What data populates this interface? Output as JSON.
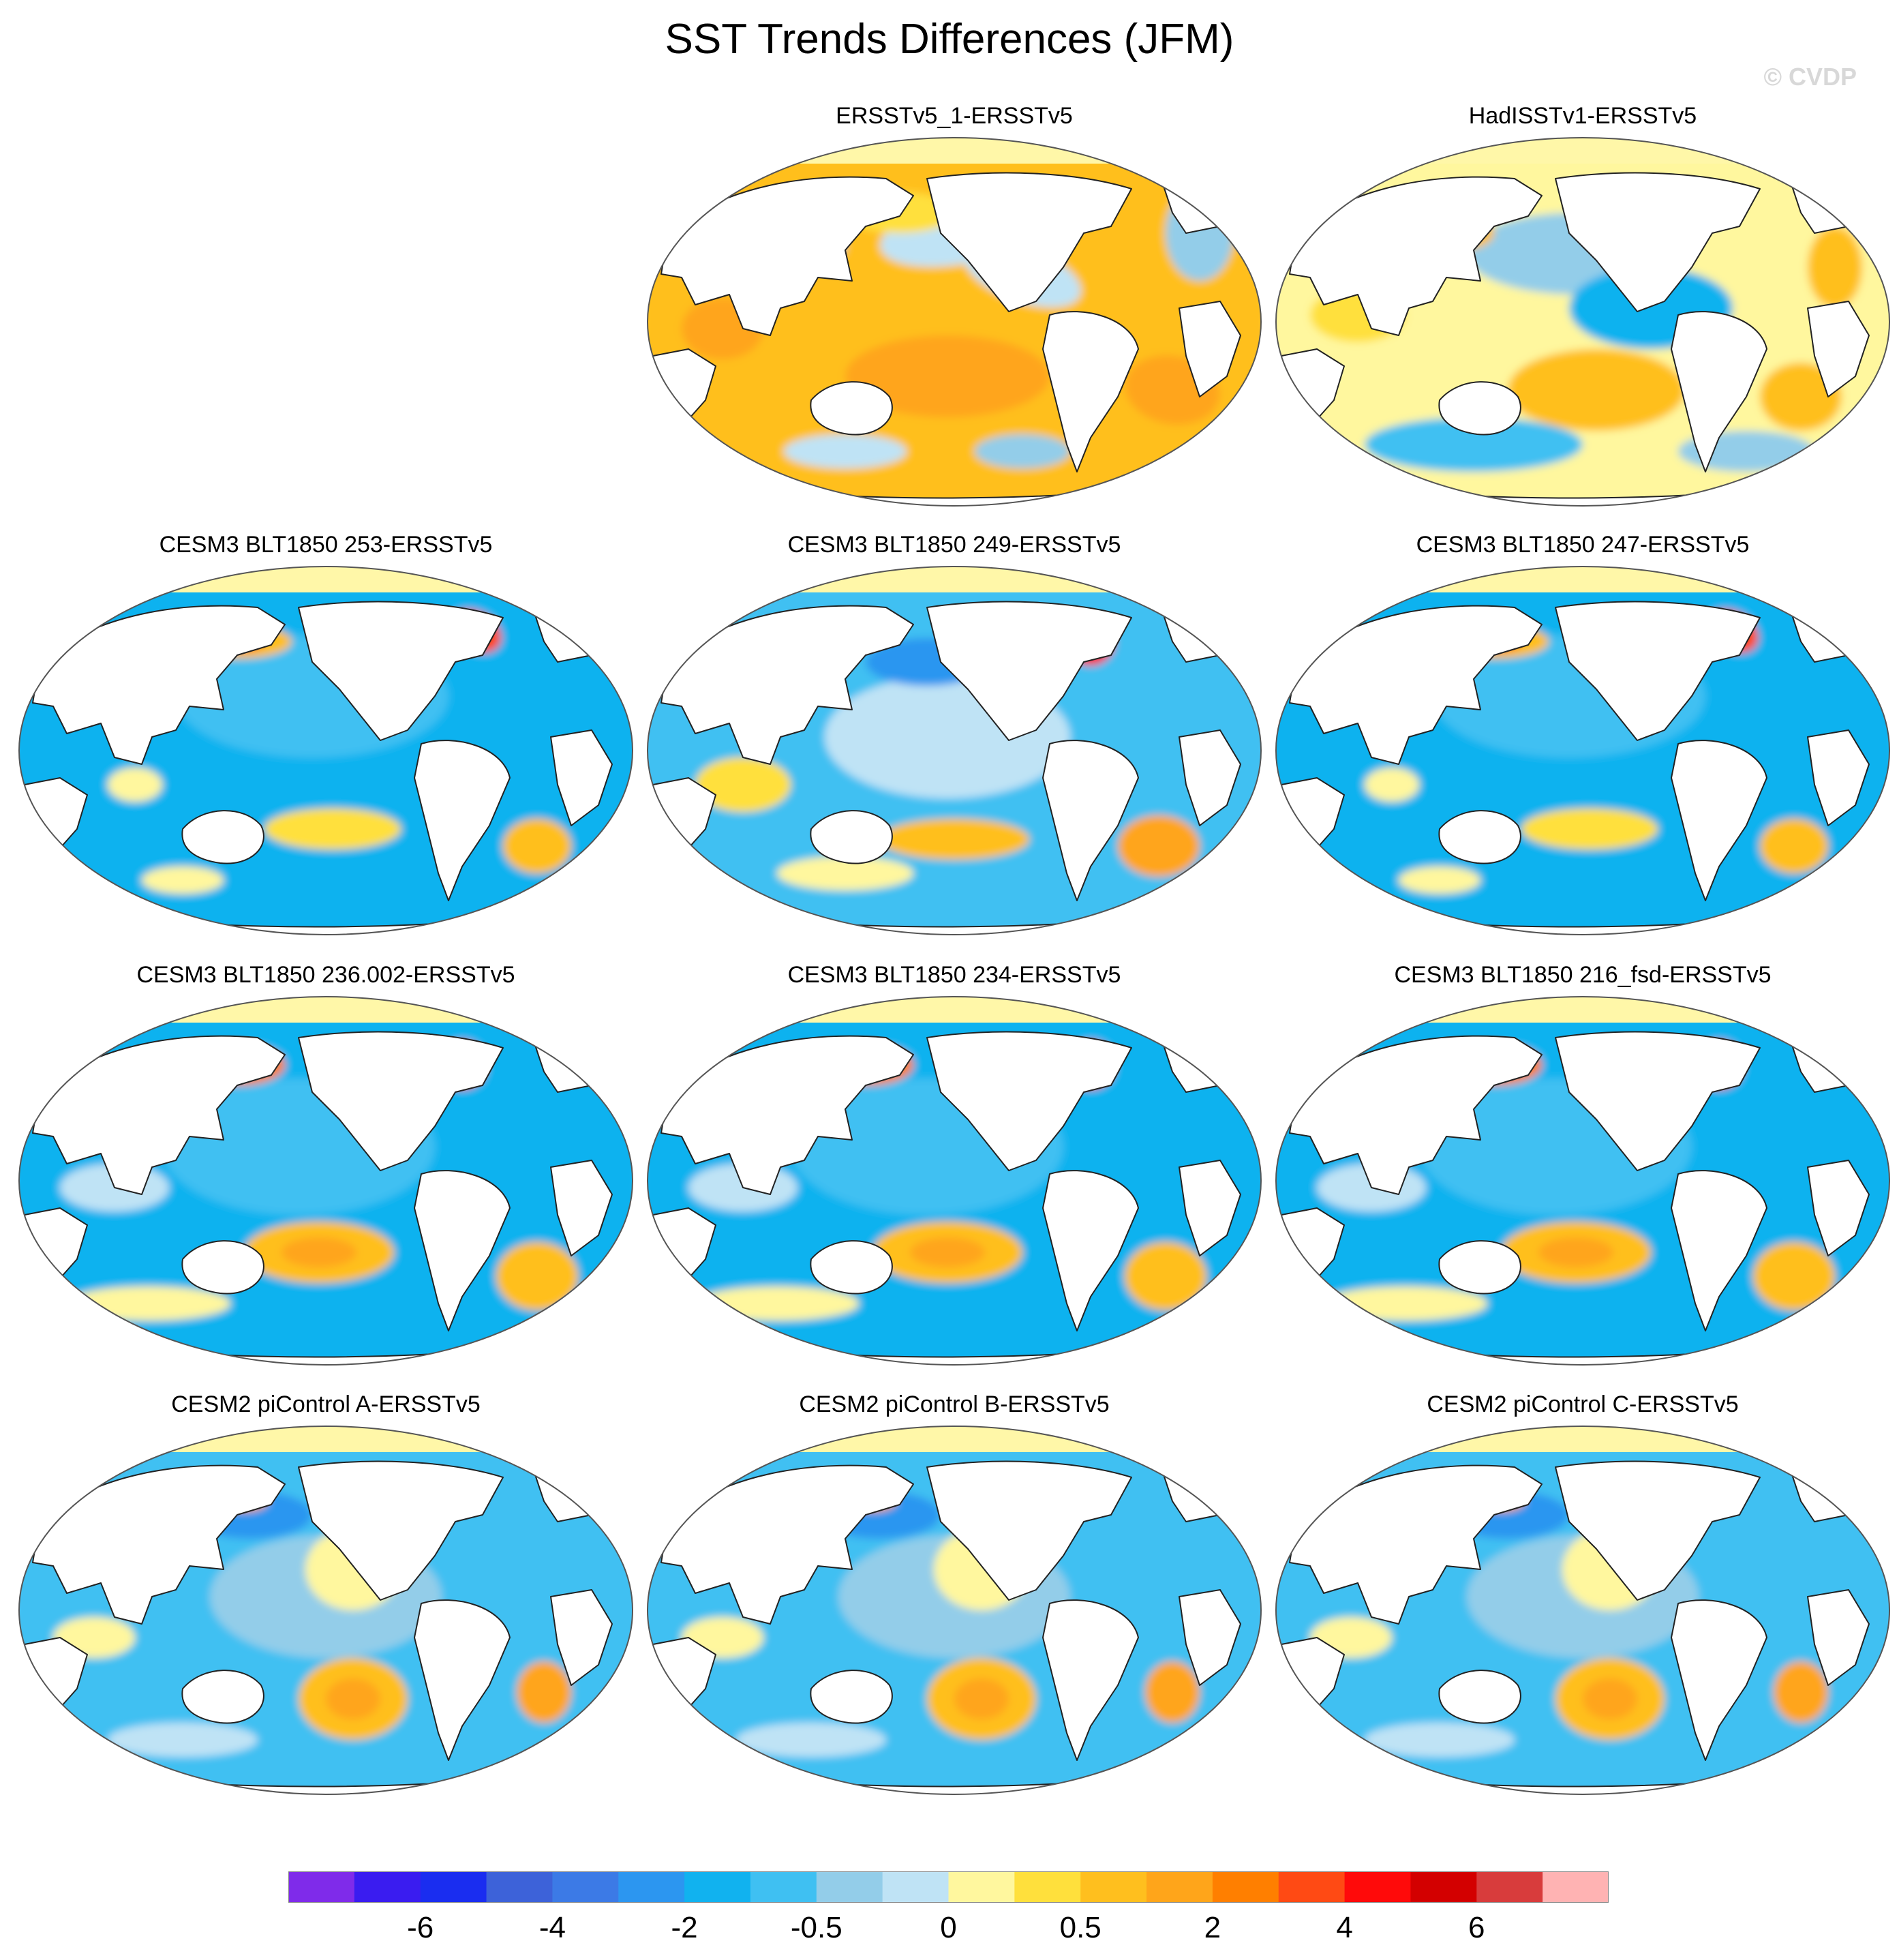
{
  "title": "SST Trends Differences (JFM)",
  "watermark": "© CVDP",
  "colors": {
    "land": "#ffffff",
    "ice": "#fff7a8",
    "coast": "#222222",
    "map_outline": "#555555"
  },
  "panels": [
    {
      "label": "ERSSTv5_1-ERSSTv5",
      "row": 0,
      "col": 1,
      "pattern": "warm"
    },
    {
      "label": "HadISSTv1-ERSSTv5",
      "row": 0,
      "col": 2,
      "pattern": "mixed_warm"
    },
    {
      "label": "CESM3 BLT1850 253-ERSSTv5",
      "row": 1,
      "col": 0,
      "pattern": "cool_gulfstream"
    },
    {
      "label": "CESM3 BLT1850 249-ERSSTv5",
      "row": 1,
      "col": 1,
      "pattern": "cool_mixed"
    },
    {
      "label": "CESM3 BLT1850 247-ERSSTv5",
      "row": 1,
      "col": 2,
      "pattern": "cool_gulfstream"
    },
    {
      "label": "CESM3 BLT1850 236.002-ERSSTv5",
      "row": 2,
      "col": 0,
      "pattern": "cool_southpac"
    },
    {
      "label": "CESM3 BLT1850 234-ERSSTv5",
      "row": 2,
      "col": 1,
      "pattern": "cool_southpac"
    },
    {
      "label": "CESM3 BLT1850 216_fsd-ERSSTv5",
      "row": 2,
      "col": 2,
      "pattern": "cool_southpac"
    },
    {
      "label": "CESM2 piControl A-ERSSTv5",
      "row": 3,
      "col": 0,
      "pattern": "pi_mixed"
    },
    {
      "label": "CESM2 piControl B-ERSSTv5",
      "row": 3,
      "col": 1,
      "pattern": "pi_mixed"
    },
    {
      "label": "CESM2 piControl C-ERSSTv5",
      "row": 3,
      "col": 2,
      "pattern": "pi_mixed"
    }
  ],
  "colorbar": {
    "colors": [
      "#7f2bea",
      "#3a1cf0",
      "#1a2df0",
      "#3d62d9",
      "#3c7ae6",
      "#2c96f0",
      "#11b2ef",
      "#3fc0f2",
      "#93cde9",
      "#bfe3f5",
      "#fff79e",
      "#ffe03c",
      "#ffbf1e",
      "#ffa51a",
      "#ff7f00",
      "#ff4a14",
      "#ff0a0a",
      "#d30000",
      "#d83c3c",
      "#ffb3b3"
    ],
    "labels": [
      {
        "text": "-6",
        "boundary": 2
      },
      {
        "text": "-4",
        "boundary": 4
      },
      {
        "text": "-2",
        "boundary": 6
      },
      {
        "text": "-0.5",
        "boundary": 8
      },
      {
        "text": "0",
        "boundary": 10
      },
      {
        "text": "0.5",
        "boundary": 12
      },
      {
        "text": "2",
        "boundary": 14
      },
      {
        "text": "4",
        "boundary": 16
      },
      {
        "text": "6",
        "boundary": 18
      }
    ]
  }
}
